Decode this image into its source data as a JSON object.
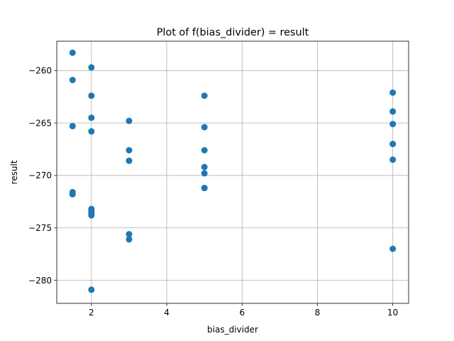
{
  "chart_data": {
    "type": "scatter",
    "title": "Plot of f(bias_divider) = result",
    "xlabel": "bias_divider",
    "ylabel": "result",
    "xlim": [
      1.08,
      10.42
    ],
    "ylim": [
      -282.2,
      -257.2
    ],
    "xticks": [
      2,
      4,
      6,
      8,
      10
    ],
    "yticks": [
      -280,
      -275,
      -270,
      -265,
      -260
    ],
    "grid": true,
    "color": "#1f77b4",
    "series": [
      {
        "x": [
          1.5,
          1.5,
          1.5,
          1.5,
          1.5,
          2,
          2,
          2,
          2,
          2,
          2,
          2,
          2,
          2,
          3,
          3,
          3,
          3,
          3,
          5,
          5,
          5,
          5,
          5,
          5,
          5,
          10,
          10,
          10,
          10,
          10,
          10
        ],
        "y": [
          -258.3,
          -260.9,
          -265.3,
          -271.6,
          -271.8,
          -259.7,
          -262.4,
          -264.5,
          -265.8,
          -273.2,
          -273.4,
          -273.6,
          -273.8,
          -280.9,
          -264.8,
          -267.6,
          -268.6,
          -275.6,
          -276.1,
          -262.4,
          -265.4,
          -267.6,
          -269.2,
          -269.8,
          -271.2,
          -271.2,
          -262.1,
          -263.9,
          -265.1,
          -267.0,
          -268.5,
          -277.0
        ]
      }
    ]
  }
}
